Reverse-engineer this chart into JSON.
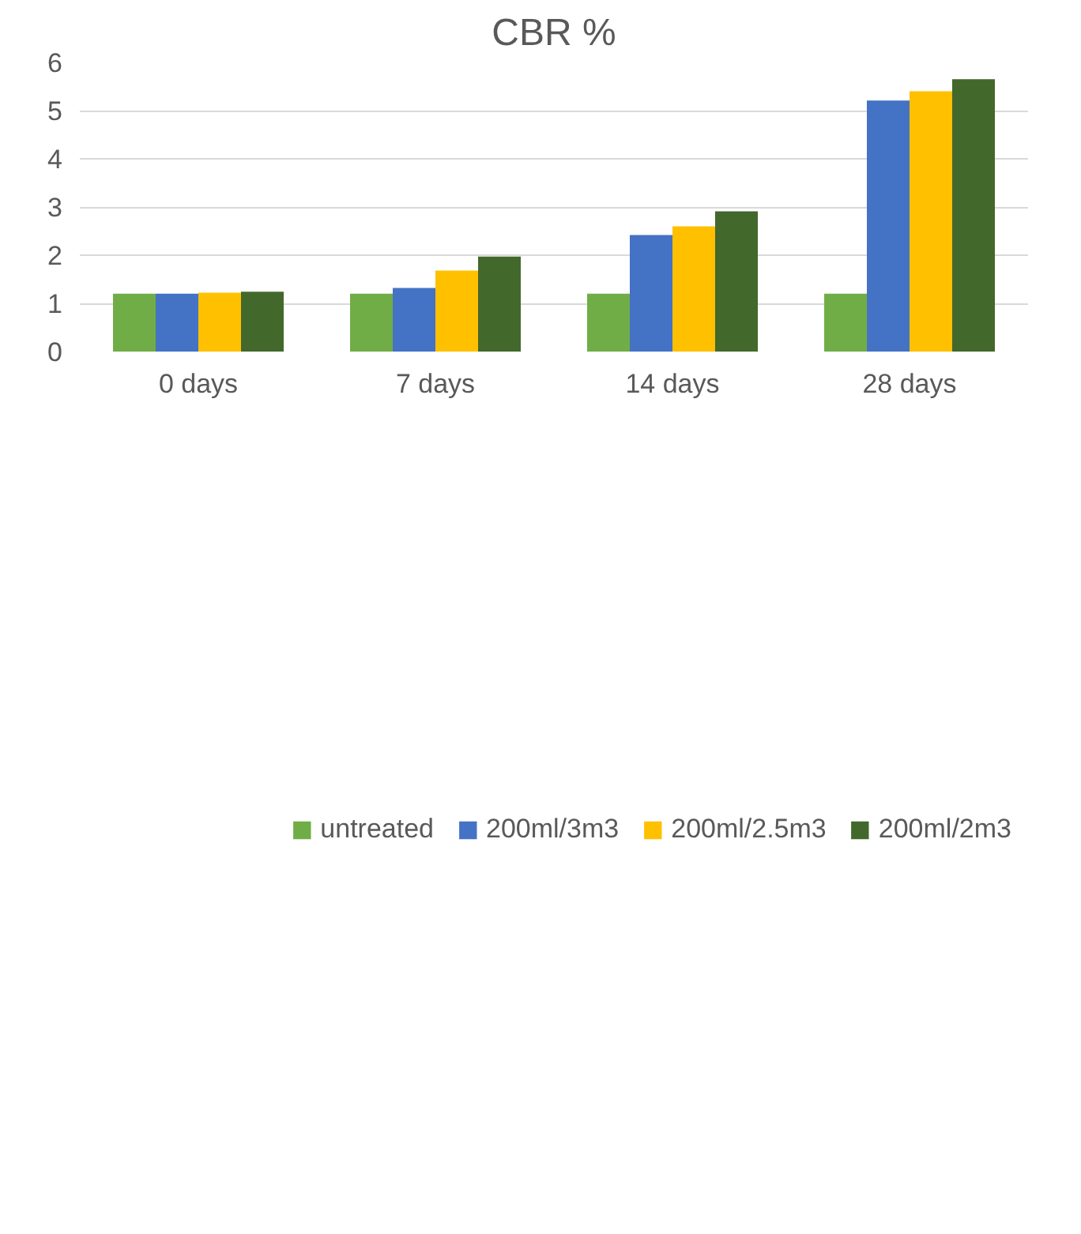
{
  "chart_data": {
    "type": "bar",
    "title": "CBR %",
    "categories": [
      "0 days",
      "7 days",
      "14 days",
      "28 days"
    ],
    "series": [
      {
        "name": "untreated",
        "color": "#70ad47",
        "values": [
          1.2,
          1.2,
          1.2,
          1.2
        ]
      },
      {
        "name": "200ml/3m3",
        "color": "#4472c4",
        "values": [
          1.2,
          1.32,
          2.42,
          5.21
        ]
      },
      {
        "name": "200ml/2.5m3",
        "color": "#ffc000",
        "values": [
          1.22,
          1.68,
          2.6,
          5.4
        ]
      },
      {
        "name": "200ml/2m3",
        "color": "#43682b",
        "values": [
          1.24,
          1.97,
          2.91,
          5.65
        ]
      }
    ],
    "ylim": [
      0,
      6
    ],
    "yticks": [
      0,
      1,
      2,
      3,
      4,
      5,
      6
    ],
    "grid": "y",
    "legend": "bottom"
  }
}
